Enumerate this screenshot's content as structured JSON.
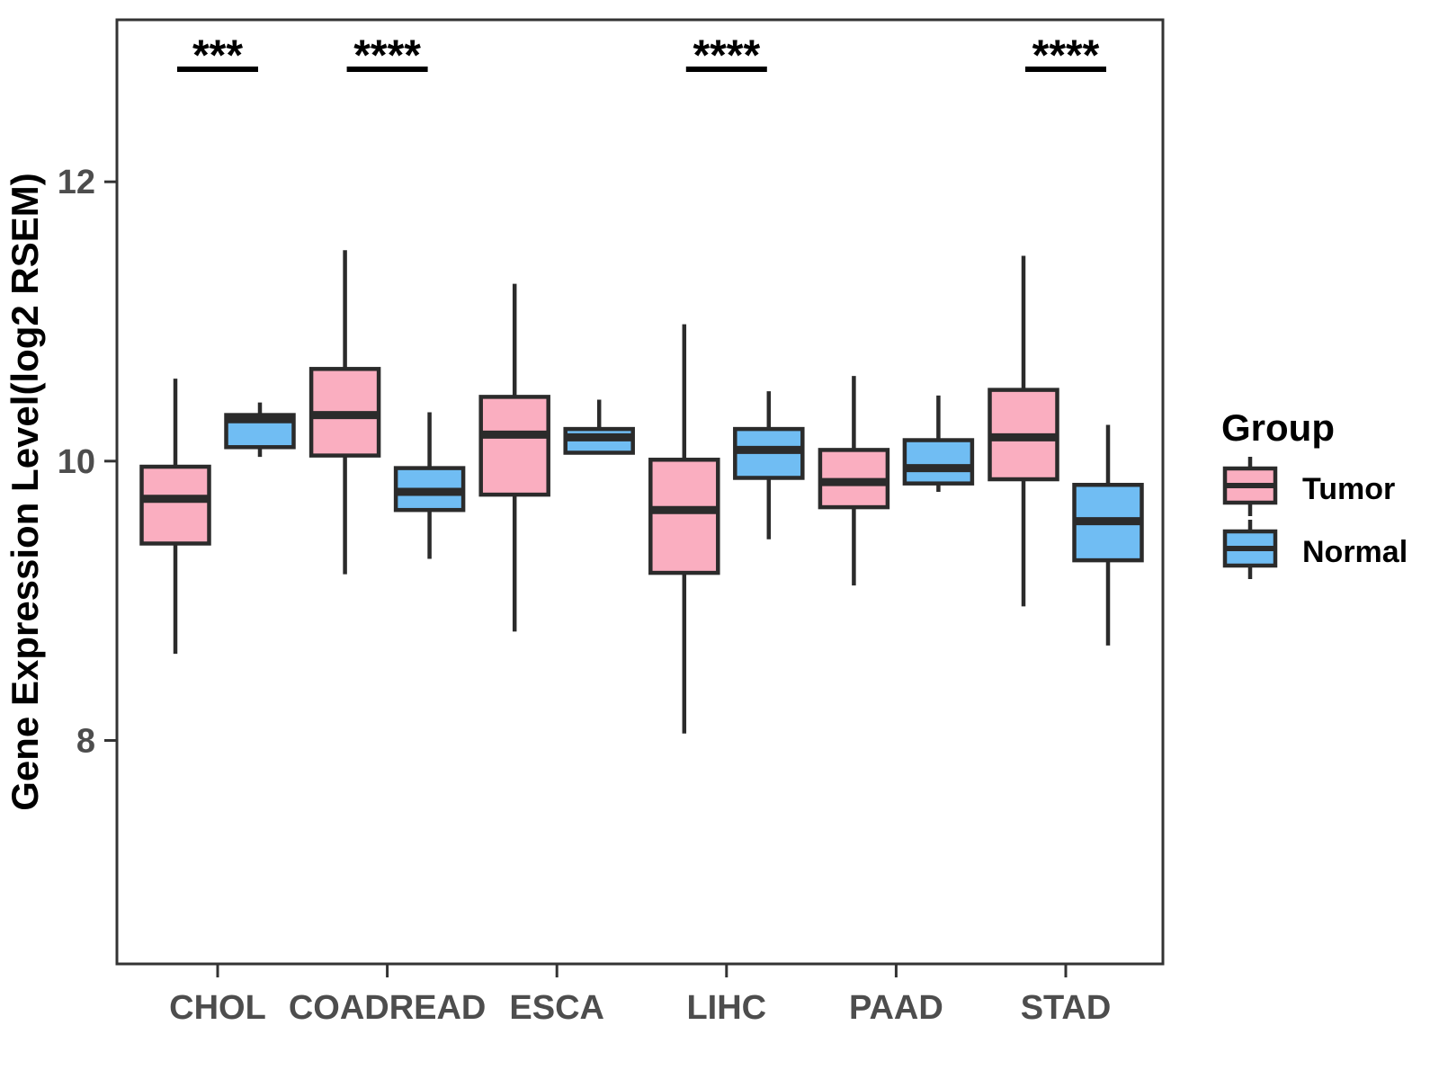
{
  "chart_data": {
    "type": "boxplot",
    "title": "",
    "xlabel": "",
    "ylabel": "Gene Expression Level(log2 RSEM)",
    "yticks": [
      8,
      10,
      12
    ],
    "ylim": [
      6.4,
      13.16
    ],
    "grid": "off",
    "panel_border": true,
    "categories": [
      "CHOL",
      "COADREAD",
      "ESCA",
      "LIHC",
      "PAAD",
      "STAD"
    ],
    "colors": {
      "tumor_fill": "#FAAEC0",
      "normal_fill": "#70BDF3",
      "box_stroke": "#2b2b2b",
      "axis_line": "#333333",
      "tick_text": "#4d4d4d",
      "significance": "#000000"
    },
    "legend": {
      "title": "Group",
      "position": "right",
      "entries": [
        {
          "label": "Tumor",
          "color": "#FAAEC0"
        },
        {
          "label": "Normal",
          "color": "#70BDF3"
        }
      ]
    },
    "significance": [
      {
        "category": "CHOL",
        "label": "***"
      },
      {
        "category": "COADREAD",
        "label": "****"
      },
      {
        "category": "LIHC",
        "label": "****"
      },
      {
        "category": "STAD",
        "label": "****"
      }
    ],
    "series": [
      {
        "name": "Tumor",
        "color": "#FAAEC0",
        "boxes": [
          {
            "category": "CHOL",
            "min": 8.62,
            "q1": 9.41,
            "median": 9.73,
            "q3": 9.96,
            "max": 10.59
          },
          {
            "category": "COADREAD",
            "min": 9.19,
            "q1": 10.04,
            "median": 10.33,
            "q3": 10.66,
            "max": 11.51
          },
          {
            "category": "ESCA",
            "min": 8.78,
            "q1": 9.76,
            "median": 10.19,
            "q3": 10.46,
            "max": 11.27
          },
          {
            "category": "LIHC",
            "min": 8.05,
            "q1": 9.2,
            "median": 9.65,
            "q3": 10.01,
            "max": 10.98
          },
          {
            "category": "PAAD",
            "min": 9.11,
            "q1": 9.67,
            "median": 9.85,
            "q3": 10.08,
            "max": 10.61
          },
          {
            "category": "STAD",
            "min": 8.96,
            "q1": 9.87,
            "median": 10.17,
            "q3": 10.51,
            "max": 11.47
          }
        ]
      },
      {
        "name": "Normal",
        "color": "#70BDF3",
        "boxes": [
          {
            "category": "CHOL",
            "min": 10.03,
            "q1": 10.1,
            "median": 10.3,
            "q3": 10.33,
            "max": 10.42
          },
          {
            "category": "COADREAD",
            "min": 9.3,
            "q1": 9.65,
            "median": 9.78,
            "q3": 9.95,
            "max": 10.35
          },
          {
            "category": "ESCA",
            "min": 10.05,
            "q1": 10.06,
            "median": 10.17,
            "q3": 10.23,
            "max": 10.44
          },
          {
            "category": "LIHC",
            "min": 9.44,
            "q1": 9.88,
            "median": 10.08,
            "q3": 10.23,
            "max": 10.5
          },
          {
            "category": "PAAD",
            "min": 9.78,
            "q1": 9.84,
            "median": 9.95,
            "q3": 10.15,
            "max": 10.47
          },
          {
            "category": "STAD",
            "min": 8.68,
            "q1": 9.29,
            "median": 9.57,
            "q3": 9.83,
            "max": 10.26
          }
        ]
      }
    ]
  }
}
